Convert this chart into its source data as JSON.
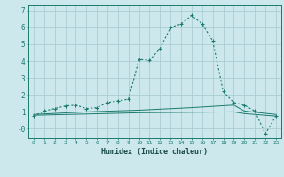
{
  "xlabel": "Humidex (Indice chaleur)",
  "background_color": "#cce8ec",
  "grid_color": "#aacdd4",
  "line_color": "#1a7a6e",
  "xlim": [
    -0.5,
    23.5
  ],
  "ylim": [
    -0.55,
    7.3
  ],
  "xticks": [
    0,
    1,
    2,
    3,
    4,
    5,
    6,
    7,
    8,
    9,
    10,
    11,
    12,
    13,
    14,
    15,
    16,
    17,
    18,
    19,
    20,
    21,
    22,
    23
  ],
  "yticks": [
    0,
    1,
    2,
    3,
    4,
    5,
    6,
    7
  ],
  "ytick_labels": [
    "-0",
    "1",
    "2",
    "3",
    "4",
    "5",
    "6",
    "7"
  ],
  "main_series": [
    [
      0,
      0.75
    ],
    [
      1,
      1.05
    ],
    [
      2,
      1.2
    ],
    [
      3,
      1.35
    ],
    [
      4,
      1.4
    ],
    [
      5,
      1.2
    ],
    [
      6,
      1.25
    ],
    [
      7,
      1.55
    ],
    [
      8,
      1.65
    ],
    [
      9,
      1.75
    ],
    [
      10,
      4.1
    ],
    [
      11,
      4.05
    ],
    [
      12,
      4.75
    ],
    [
      13,
      6.0
    ],
    [
      14,
      6.2
    ],
    [
      15,
      6.7
    ],
    [
      16,
      6.2
    ],
    [
      17,
      5.2
    ],
    [
      18,
      2.2
    ],
    [
      19,
      1.55
    ],
    [
      20,
      1.4
    ],
    [
      21,
      1.05
    ],
    [
      22,
      -0.3
    ],
    [
      23,
      0.75
    ]
  ],
  "flat_series1": [
    [
      0,
      0.85
    ],
    [
      5,
      1.0
    ],
    [
      10,
      1.1
    ],
    [
      15,
      1.25
    ],
    [
      19,
      1.4
    ],
    [
      20,
      1.05
    ],
    [
      23,
      0.85
    ]
  ],
  "flat_series2": [
    [
      0,
      0.8
    ],
    [
      10,
      0.95
    ],
    [
      19,
      1.0
    ],
    [
      20,
      0.9
    ],
    [
      23,
      0.75
    ]
  ]
}
